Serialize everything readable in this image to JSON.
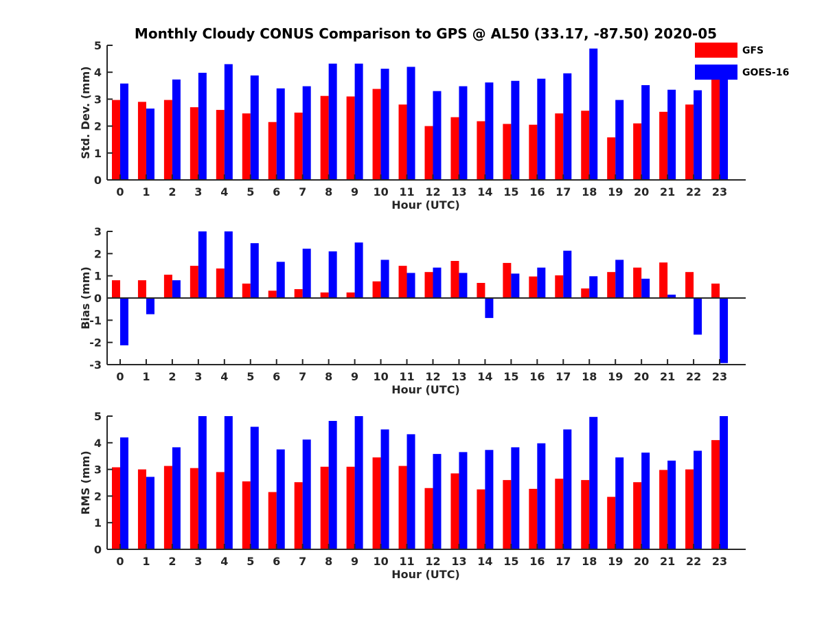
{
  "chart_data": [
    {
      "type": "bar",
      "title": "Monthly Cloudy CONUS Comparison to GPS @ AL50 (33.17, -87.50) 2020-05",
      "xlabel": "Hour (UTC)",
      "ylabel": "Std. Dev. (mm)",
      "ylim": [
        0,
        5
      ],
      "yticks": [
        "0",
        "1",
        "2",
        "3",
        "4",
        "5"
      ],
      "categories": [
        "0",
        "1",
        "2",
        "3",
        "4",
        "5",
        "6",
        "7",
        "8",
        "9",
        "10",
        "11",
        "12",
        "13",
        "14",
        "15",
        "16",
        "17",
        "18",
        "19",
        "20",
        "21",
        "22",
        "23"
      ],
      "series": [
        {
          "name": "GFS",
          "color": "#ff0000",
          "values": [
            2.97,
            2.9,
            2.97,
            2.7,
            2.6,
            2.47,
            2.15,
            2.5,
            3.12,
            3.1,
            3.38,
            2.8,
            2.0,
            2.33,
            2.18,
            2.08,
            2.05,
            2.47,
            2.57,
            1.58,
            2.1,
            2.53,
            2.8,
            3.77
          ]
        },
        {
          "name": "GOES-16",
          "color": "#0000ff",
          "values": [
            3.58,
            2.65,
            3.73,
            3.98,
            4.3,
            3.88,
            3.4,
            3.48,
            4.32,
            4.32,
            4.13,
            4.2,
            3.3,
            3.48,
            3.62,
            3.68,
            3.76,
            3.96,
            4.88,
            2.97,
            3.52,
            3.35,
            3.33,
            4.1
          ]
        }
      ],
      "legend": {
        "position": "top-right",
        "entries": [
          "GFS",
          "GOES-16"
        ]
      }
    },
    {
      "type": "bar",
      "title": "",
      "xlabel": "Hour (UTC)",
      "ylabel": "Bias (mm)",
      "ylim": [
        -3,
        3
      ],
      "yticks": [
        "-3",
        "-2",
        "-1",
        "0",
        "1",
        "2",
        "3"
      ],
      "categories": [
        "0",
        "1",
        "2",
        "3",
        "4",
        "5",
        "6",
        "7",
        "8",
        "9",
        "10",
        "11",
        "12",
        "13",
        "14",
        "15",
        "16",
        "17",
        "18",
        "19",
        "20",
        "21",
        "22",
        "23"
      ],
      "series": [
        {
          "name": "GFS",
          "color": "#ff0000",
          "values": [
            0.8,
            0.8,
            1.05,
            1.45,
            1.33,
            0.65,
            0.33,
            0.4,
            0.25,
            0.25,
            0.75,
            1.45,
            1.17,
            1.67,
            0.68,
            1.58,
            0.97,
            1.02,
            0.43,
            1.17,
            1.37,
            1.6,
            1.17,
            0.65
          ]
        },
        {
          "name": "GOES-16",
          "color": "#0000ff",
          "values": [
            -2.13,
            -0.73,
            0.8,
            3.0,
            3.0,
            2.47,
            1.63,
            2.22,
            2.1,
            2.5,
            1.72,
            1.13,
            1.37,
            1.13,
            -0.9,
            1.1,
            1.37,
            2.13,
            0.98,
            1.72,
            0.87,
            0.15,
            -1.65,
            -2.93
          ]
        }
      ]
    },
    {
      "type": "bar",
      "title": "",
      "xlabel": "Hour (UTC)",
      "ylabel": "RMS (mm)",
      "ylim": [
        0,
        5
      ],
      "yticks": [
        "0",
        "1",
        "2",
        "3",
        "4",
        "5"
      ],
      "categories": [
        "0",
        "1",
        "2",
        "3",
        "4",
        "5",
        "6",
        "7",
        "8",
        "9",
        "10",
        "11",
        "12",
        "13",
        "14",
        "15",
        "16",
        "17",
        "18",
        "19",
        "20",
        "21",
        "22",
        "23"
      ],
      "series": [
        {
          "name": "GFS",
          "color": "#ff0000",
          "values": [
            3.08,
            3.0,
            3.13,
            3.05,
            2.9,
            2.55,
            2.15,
            2.52,
            3.1,
            3.1,
            3.45,
            3.13,
            2.3,
            2.85,
            2.25,
            2.6,
            2.27,
            2.65,
            2.6,
            1.97,
            2.52,
            2.98,
            3.0,
            4.1
          ]
        },
        {
          "name": "GOES-16",
          "color": "#0000ff",
          "values": [
            4.2,
            2.72,
            3.83,
            5.0,
            5.0,
            4.6,
            3.75,
            4.12,
            4.82,
            5.0,
            4.5,
            4.32,
            3.58,
            3.65,
            3.73,
            3.83,
            3.98,
            4.5,
            4.97,
            3.45,
            3.63,
            3.33,
            3.7,
            5.0
          ]
        }
      ]
    }
  ]
}
